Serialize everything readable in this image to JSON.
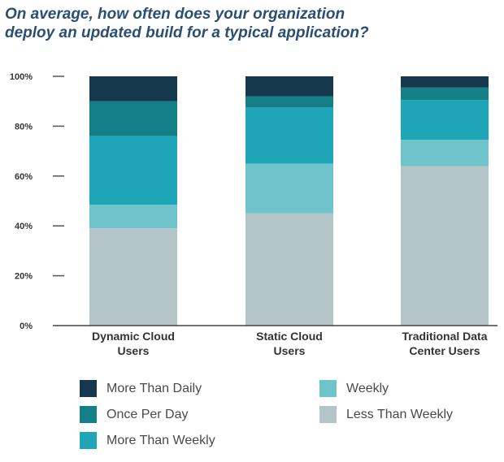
{
  "title_lines": [
    "On average, how often does your organization",
    "deploy an updated build for a typical application?"
  ],
  "chart_data": {
    "type": "bar",
    "stacked": true,
    "categories": [
      [
        "Dynamic Cloud",
        "Users"
      ],
      [
        "Static Cloud",
        "Users"
      ],
      [
        "Traditional Data",
        "Center Users"
      ]
    ],
    "series": [
      {
        "name": "Less Than Weekly",
        "color": "#b3c5c6",
        "values": [
          39,
          45,
          64
        ]
      },
      {
        "name": "Weekly",
        "color": "#6fc3cb",
        "values": [
          9.5,
          20,
          10.5
        ]
      },
      {
        "name": "More Than Weekly",
        "color": "#1ea5b7",
        "values": [
          27.5,
          22.5,
          16
        ]
      },
      {
        "name": "Once Per Day",
        "color": "#157f88",
        "values": [
          14,
          4.5,
          5
        ]
      },
      {
        "name": "More Than Daily",
        "color": "#15384f",
        "values": [
          10,
          8,
          4.5
        ]
      }
    ],
    "ylim": [
      0,
      100
    ],
    "yticks": [
      "0%",
      "20%",
      "40%",
      "60%",
      "80%",
      "100%"
    ],
    "ytick_values": [
      0,
      20,
      40,
      60,
      80,
      100
    ],
    "grid": false,
    "legend_placement": "bottom",
    "legend_order": [
      "More Than Daily",
      "Once Per Day",
      "More Than Weekly",
      "Weekly",
      "Less Than Weekly"
    ]
  }
}
